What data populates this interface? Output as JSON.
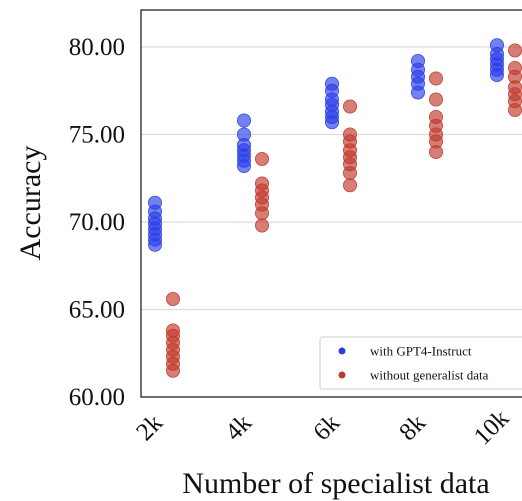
{
  "chart_data": {
    "type": "scatter",
    "title": "",
    "xlabel": "Number of specialist data",
    "ylabel": "Accuracy",
    "categories": [
      "2k",
      "4k",
      "6k",
      "8k",
      "10k"
    ],
    "ylim": [
      60,
      82
    ],
    "yticks": [
      "60.00",
      "65.00",
      "70.00",
      "75.00",
      "80.00"
    ],
    "grid": "horizontal",
    "legend_position": "bottom-right",
    "series": [
      {
        "name": "with GPT4-Instruct",
        "color": "#2a3ee8",
        "values": [
          [
            68.7,
            69.0,
            69.3,
            69.6,
            69.9,
            70.2,
            70.6,
            71.1
          ],
          [
            73.2,
            73.5,
            73.8,
            74.1,
            74.4,
            75.0,
            75.8
          ],
          [
            75.7,
            76.0,
            76.3,
            76.7,
            77.0,
            77.5,
            77.9
          ],
          [
            77.4,
            77.9,
            78.3,
            78.7,
            79.2
          ],
          [
            78.4,
            78.7,
            79.0,
            79.3,
            79.6,
            80.1
          ]
        ]
      },
      {
        "name": "without generalist data",
        "color": "#c0392b",
        "values": [
          [
            61.5,
            61.9,
            62.3,
            62.7,
            63.1,
            63.5,
            63.8,
            65.6
          ],
          [
            69.8,
            70.5,
            71.0,
            71.4,
            71.8,
            72.2,
            73.6
          ],
          [
            72.1,
            72.8,
            73.3,
            73.7,
            74.1,
            74.6,
            75.0,
            76.6
          ],
          [
            74.0,
            74.6,
            75.0,
            75.5,
            76.0,
            77.0,
            78.2
          ],
          [
            76.4,
            76.9,
            77.3,
            77.7,
            78.3,
            78.8,
            79.8
          ]
        ]
      }
    ]
  }
}
